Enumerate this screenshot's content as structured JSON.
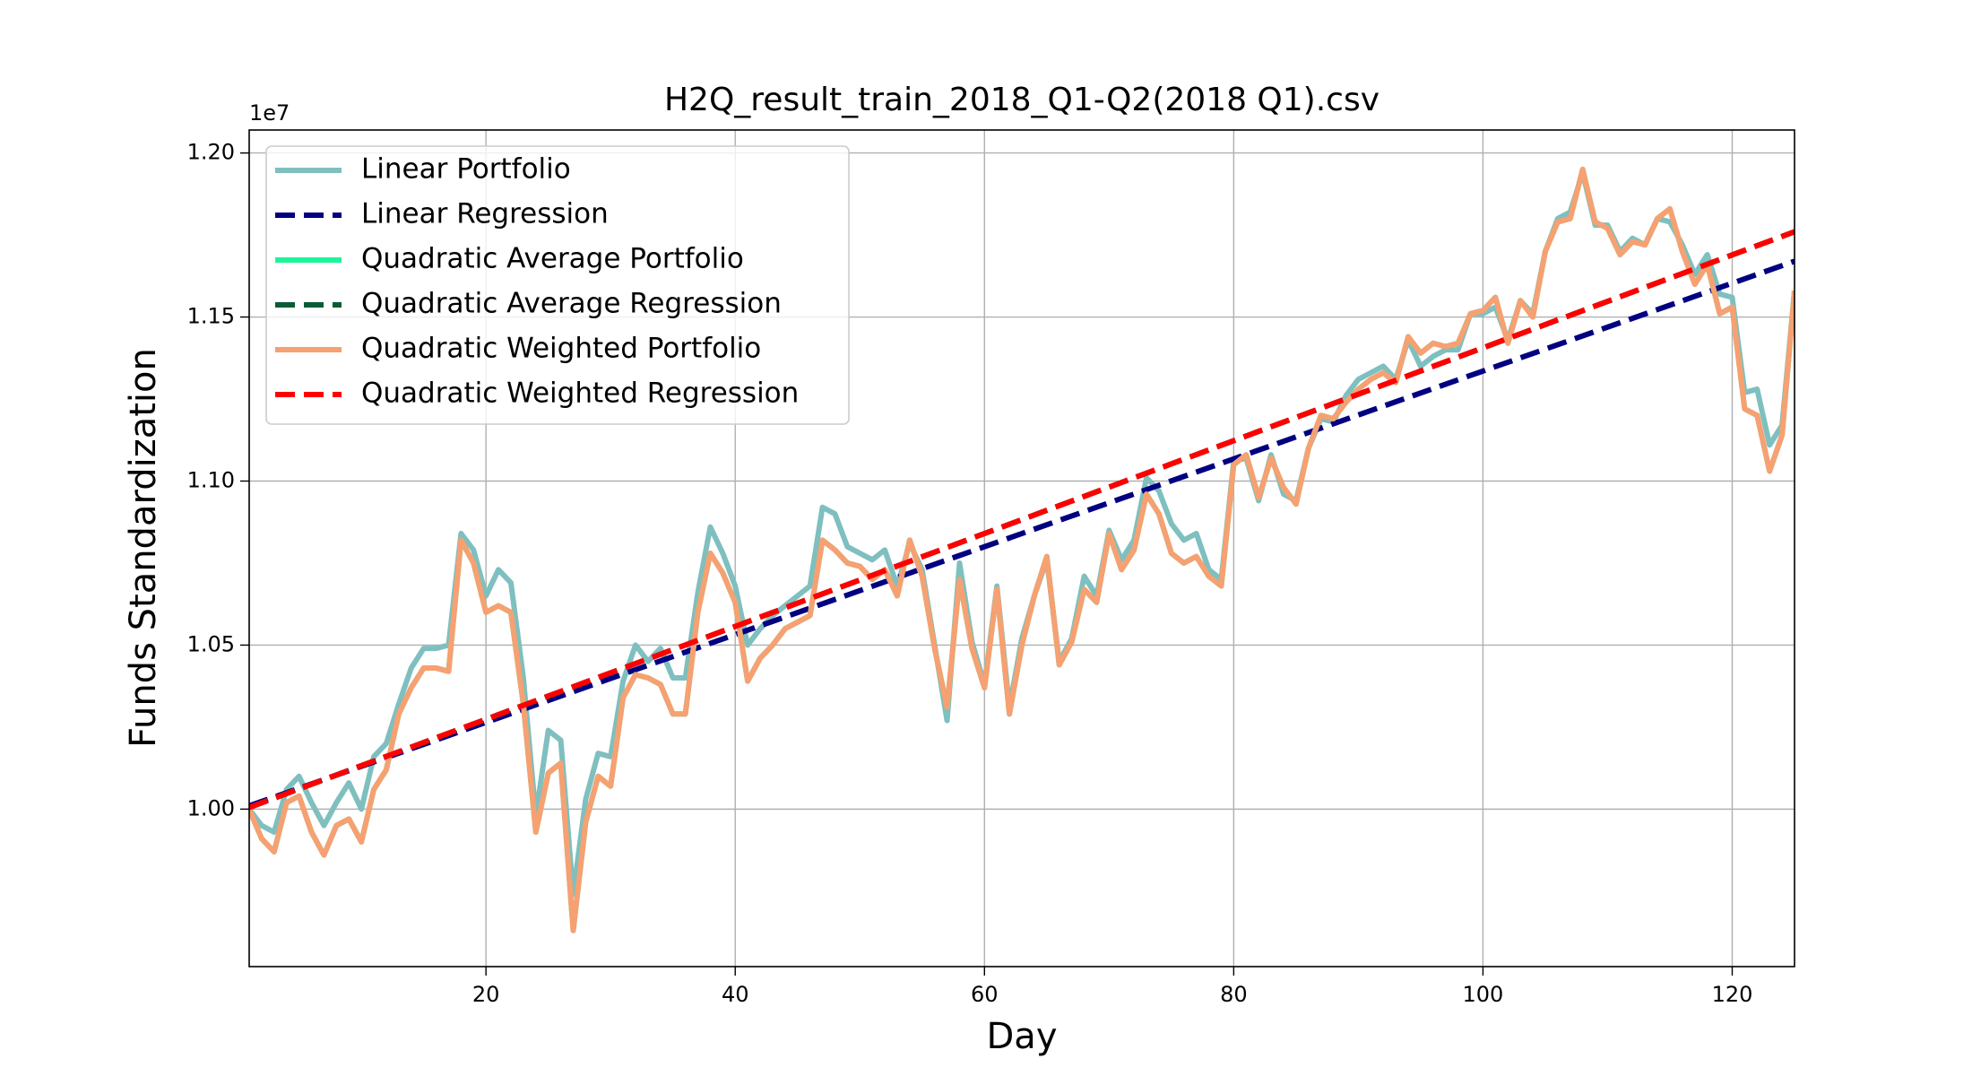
{
  "chart_data": {
    "type": "line",
    "title": "H2Q_result_train_2018_Q1-Q2(2018 Q1).csv",
    "xlabel": "Day",
    "ylabel": "Funds Standardization",
    "y_offset_label": "1e7",
    "x": [
      1,
      2,
      3,
      4,
      5,
      6,
      7,
      8,
      9,
      10,
      11,
      12,
      13,
      14,
      15,
      16,
      17,
      18,
      19,
      20,
      21,
      22,
      23,
      24,
      25,
      26,
      27,
      28,
      29,
      30,
      31,
      32,
      33,
      34,
      35,
      36,
      37,
      38,
      39,
      40,
      41,
      42,
      43,
      44,
      45,
      46,
      47,
      48,
      49,
      50,
      51,
      52,
      53,
      54,
      55,
      56,
      57,
      58,
      59,
      60,
      61,
      62,
      63,
      64,
      65,
      66,
      67,
      68,
      69,
      70,
      71,
      72,
      73,
      74,
      75,
      76,
      77,
      78,
      79,
      80,
      81,
      82,
      83,
      84,
      85,
      86,
      87,
      88,
      89,
      90,
      91,
      92,
      93,
      94,
      95,
      96,
      97,
      98,
      99,
      100,
      101,
      102,
      103,
      104,
      105,
      106,
      107,
      108,
      109,
      110,
      111,
      112,
      113,
      114,
      115,
      116,
      117,
      118,
      119,
      120,
      121,
      122,
      123,
      124,
      125
    ],
    "series": [
      {
        "name": "Linear Portfolio",
        "color": "#7fbfbf",
        "style": "solid",
        "values": [
          1.0,
          0.995,
          0.993,
          1.006,
          1.01,
          1.002,
          0.995,
          1.002,
          1.008,
          1.0,
          1.016,
          1.02,
          1.032,
          1.043,
          1.049,
          1.049,
          1.05,
          1.084,
          1.079,
          1.065,
          1.073,
          1.069,
          1.04,
          0.998,
          1.024,
          1.021,
          0.974,
          1.003,
          1.017,
          1.016,
          1.039,
          1.05,
          1.045,
          1.049,
          1.04,
          1.04,
          1.066,
          1.086,
          1.078,
          1.068,
          1.05,
          1.055,
          1.059,
          1.062,
          1.065,
          1.068,
          1.092,
          1.09,
          1.08,
          1.078,
          1.076,
          1.079,
          1.068,
          1.081,
          1.073,
          1.05,
          1.027,
          1.075,
          1.051,
          1.038,
          1.068,
          1.031,
          1.052,
          1.065,
          1.076,
          1.045,
          1.052,
          1.071,
          1.065,
          1.085,
          1.076,
          1.082,
          1.101,
          1.097,
          1.087,
          1.082,
          1.084,
          1.073,
          1.07,
          1.106,
          1.107,
          1.094,
          1.108,
          1.096,
          1.094,
          1.11,
          1.119,
          1.118,
          1.126,
          1.131,
          1.133,
          1.135,
          1.131,
          1.143,
          1.135,
          1.138,
          1.14,
          1.14,
          1.151,
          1.151,
          1.153,
          1.143,
          1.155,
          1.151,
          1.17,
          1.18,
          1.182,
          1.194,
          1.178,
          1.178,
          1.17,
          1.174,
          1.172,
          1.18,
          1.179,
          1.172,
          1.163,
          1.169,
          1.157,
          1.156,
          1.127,
          1.128,
          1.111,
          1.117,
          1.158
        ]
      },
      {
        "name": "Linear Regression",
        "color": "#000080",
        "style": "dashed",
        "x": [
          1,
          125
        ],
        "values": [
          1.001,
          1.167
        ]
      },
      {
        "name": "Quadratic Average Portfolio",
        "color": "#1ef49a",
        "style": "solid",
        "values": [
          1.0,
          0.991,
          0.987,
          1.002,
          1.004,
          0.993,
          0.986,
          0.995,
          0.997,
          0.99,
          1.006,
          1.012,
          1.029,
          1.037,
          1.043,
          1.043,
          1.042,
          1.082,
          1.075,
          1.06,
          1.062,
          1.06,
          1.032,
          0.993,
          1.011,
          1.014,
          0.963,
          0.996,
          1.01,
          1.007,
          1.034,
          1.041,
          1.04,
          1.038,
          1.029,
          1.029,
          1.06,
          1.078,
          1.072,
          1.063,
          1.039,
          1.046,
          1.05,
          1.055,
          1.057,
          1.059,
          1.082,
          1.079,
          1.075,
          1.074,
          1.07,
          1.073,
          1.065,
          1.082,
          1.071,
          1.049,
          1.031,
          1.07,
          1.049,
          1.037,
          1.067,
          1.029,
          1.05,
          1.065,
          1.077,
          1.044,
          1.051,
          1.067,
          1.063,
          1.084,
          1.073,
          1.079,
          1.096,
          1.09,
          1.078,
          1.075,
          1.077,
          1.071,
          1.068,
          1.105,
          1.108,
          1.095,
          1.107,
          1.098,
          1.093,
          1.11,
          1.12,
          1.119,
          1.124,
          1.128,
          1.131,
          1.133,
          1.13,
          1.144,
          1.139,
          1.142,
          1.141,
          1.142,
          1.151,
          1.152,
          1.156,
          1.142,
          1.155,
          1.15,
          1.17,
          1.179,
          1.18,
          1.195,
          1.179,
          1.177,
          1.169,
          1.173,
          1.172,
          1.18,
          1.183,
          1.17,
          1.16,
          1.166,
          1.151,
          1.153,
          1.122,
          1.12,
          1.103,
          1.114,
          1.158
        ]
      },
      {
        "name": "Quadratic Average Regression",
        "color": "#0a5c36",
        "style": "dashed",
        "x": [
          1,
          125
        ],
        "values": [
          1.0005,
          1.176
        ]
      },
      {
        "name": "Quadratic Weighted Portfolio",
        "color": "#f7a072",
        "style": "solid",
        "values": [
          1.0,
          0.991,
          0.987,
          1.002,
          1.004,
          0.993,
          0.986,
          0.995,
          0.997,
          0.99,
          1.006,
          1.012,
          1.029,
          1.037,
          1.043,
          1.043,
          1.042,
          1.082,
          1.075,
          1.06,
          1.062,
          1.06,
          1.032,
          0.993,
          1.011,
          1.014,
          0.963,
          0.996,
          1.01,
          1.007,
          1.034,
          1.041,
          1.04,
          1.038,
          1.029,
          1.029,
          1.06,
          1.078,
          1.072,
          1.063,
          1.039,
          1.046,
          1.05,
          1.055,
          1.057,
          1.059,
          1.082,
          1.079,
          1.075,
          1.074,
          1.07,
          1.073,
          1.065,
          1.082,
          1.071,
          1.049,
          1.031,
          1.07,
          1.049,
          1.037,
          1.067,
          1.029,
          1.05,
          1.065,
          1.077,
          1.044,
          1.051,
          1.067,
          1.063,
          1.084,
          1.073,
          1.079,
          1.096,
          1.09,
          1.078,
          1.075,
          1.077,
          1.071,
          1.068,
          1.105,
          1.108,
          1.095,
          1.107,
          1.098,
          1.093,
          1.11,
          1.12,
          1.119,
          1.124,
          1.128,
          1.131,
          1.133,
          1.13,
          1.144,
          1.139,
          1.142,
          1.141,
          1.142,
          1.151,
          1.152,
          1.156,
          1.142,
          1.155,
          1.15,
          1.17,
          1.179,
          1.18,
          1.195,
          1.179,
          1.177,
          1.169,
          1.173,
          1.172,
          1.18,
          1.183,
          1.17,
          1.16,
          1.166,
          1.151,
          1.153,
          1.122,
          1.12,
          1.103,
          1.114,
          1.158
        ]
      },
      {
        "name": "Quadratic Weighted Regression",
        "color": "#ff0000",
        "style": "dashed",
        "x": [
          1,
          125
        ],
        "values": [
          1.0005,
          1.176
        ]
      }
    ],
    "xlim": [
      1,
      125
    ],
    "xticks": [
      20,
      40,
      60,
      80,
      100,
      120
    ],
    "ylim": [
      0.952,
      1.207
    ],
    "yticks": [
      {
        "value": 1.0,
        "label": "1.00"
      },
      {
        "value": 1.05,
        "label": "1.05"
      },
      {
        "value": 1.1,
        "label": "1.10"
      },
      {
        "value": 1.15,
        "label": "1.15"
      },
      {
        "value": 1.2,
        "label": "1.20"
      }
    ],
    "grid": true,
    "legend": "upper left"
  }
}
